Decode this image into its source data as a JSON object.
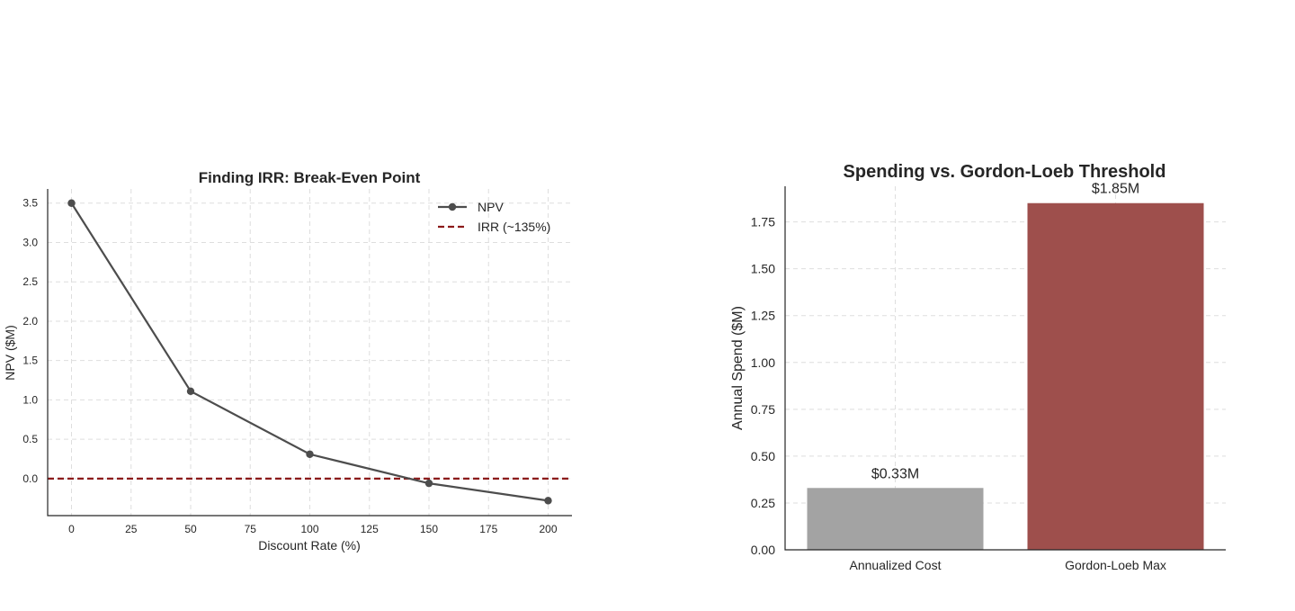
{
  "chart_data": [
    {
      "type": "line",
      "title": "Finding IRR: Break-Even Point",
      "xlabel": "Discount Rate (%)",
      "ylabel": "NPV ($M)",
      "x": [
        0,
        50,
        100,
        150,
        200
      ],
      "xlim": [
        -10,
        210
      ],
      "ylim": [
        -0.47,
        3.68
      ],
      "xticks": [
        "0",
        "25",
        "50",
        "75",
        "100",
        "125",
        "150",
        "175",
        "200"
      ],
      "yticks": [
        "0.0",
        "0.5",
        "1.0",
        "1.5",
        "2.0",
        "2.5",
        "3.0",
        "3.5"
      ],
      "grid": true,
      "legend_position": "top-right",
      "series": [
        {
          "name": "NPV",
          "values": [
            3.5,
            1.11,
            0.31,
            -0.06,
            -0.28
          ],
          "color": "#4d4d4d"
        }
      ],
      "reference_lines": [
        {
          "name": "IRR (~135%)",
          "orientation": "horizontal",
          "y": 0.0,
          "style": "dashed",
          "color": "#8b1a1a"
        }
      ]
    },
    {
      "type": "bar",
      "title": "Spending vs. Gordon-Loeb Threshold",
      "xlabel": "",
      "ylabel": "Annual Spend ($M)",
      "categories": [
        "Annualized Cost",
        "Gordon-Loeb Max"
      ],
      "values": [
        0.33,
        1.85
      ],
      "data_labels": [
        "$0.33M",
        "$1.85M"
      ],
      "colors": [
        "#a3a3a3",
        "#9e4f4c"
      ],
      "ylim": [
        0,
        1.94
      ],
      "yticks": [
        "0.00",
        "0.25",
        "0.50",
        "0.75",
        "1.00",
        "1.25",
        "1.50",
        "1.75"
      ],
      "grid": true
    }
  ]
}
